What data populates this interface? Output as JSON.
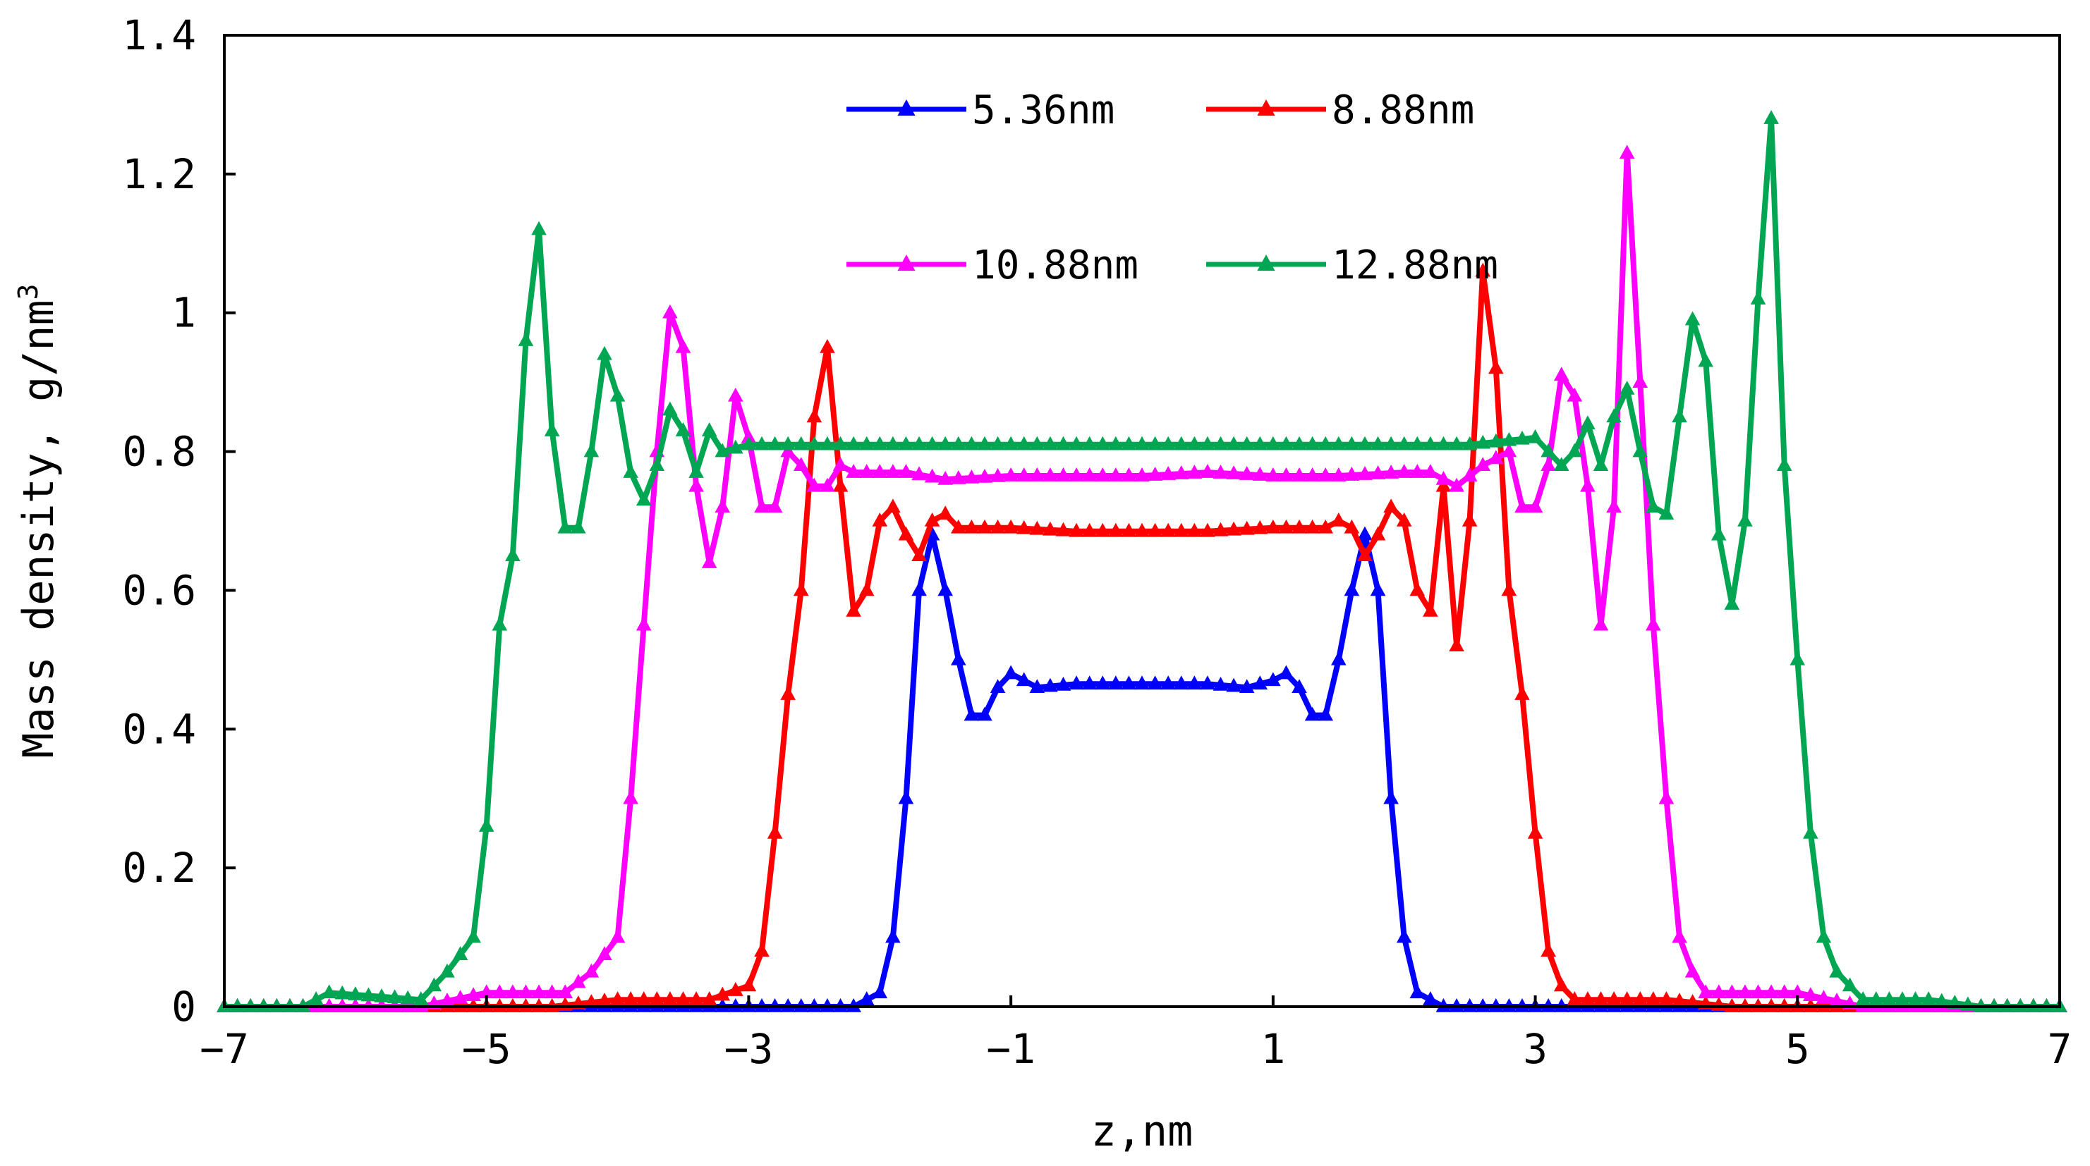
{
  "chart_data": {
    "type": "line",
    "xlabel": "z,nm",
    "ylabel_main": "Mass density, g/nm",
    "ylabel_sup": "3",
    "xlim": [
      -7,
      7
    ],
    "ylim": [
      0,
      1.4
    ],
    "x_ticks": [
      -7,
      -5,
      -3,
      -1,
      1,
      3,
      5,
      7
    ],
    "x_tick_labels": [
      "−7",
      "−5",
      "−3",
      "−1",
      "1",
      "3",
      "5",
      "7"
    ],
    "y_ticks": [
      0,
      0.2,
      0.4,
      0.6,
      0.8,
      1,
      1.2,
      1.4
    ],
    "y_tick_labels": [
      "0",
      "0.2",
      "0.4",
      "0.6",
      "0.8",
      "1",
      "1.2",
      "1.4"
    ],
    "grid": false,
    "legend_position": "top-center",
    "series": [
      {
        "name": "5.36nm",
        "color": "#0000ff",
        "marker": "triangle",
        "points": [
          [
            -7.0,
            0
          ],
          [
            -2.2,
            0
          ],
          [
            -2.0,
            0.02
          ],
          [
            -1.9,
            0.1
          ],
          [
            -1.8,
            0.3
          ],
          [
            -1.7,
            0.6
          ],
          [
            -1.6,
            0.68
          ],
          [
            -1.5,
            0.6
          ],
          [
            -1.4,
            0.5
          ],
          [
            -1.3,
            0.42
          ],
          [
            -1.2,
            0.42
          ],
          [
            -1.1,
            0.46
          ],
          [
            -1.0,
            0.48
          ],
          [
            -0.9,
            0.47
          ],
          [
            -0.8,
            0.46
          ],
          [
            -0.5,
            0.465
          ],
          [
            0.0,
            0.465
          ],
          [
            0.5,
            0.465
          ],
          [
            0.8,
            0.46
          ],
          [
            1.0,
            0.47
          ],
          [
            1.1,
            0.48
          ],
          [
            1.2,
            0.46
          ],
          [
            1.3,
            0.42
          ],
          [
            1.4,
            0.42
          ],
          [
            1.5,
            0.5
          ],
          [
            1.6,
            0.6
          ],
          [
            1.7,
            0.68
          ],
          [
            1.8,
            0.6
          ],
          [
            1.9,
            0.3
          ],
          [
            2.0,
            0.1
          ],
          [
            2.1,
            0.02
          ],
          [
            2.3,
            0
          ],
          [
            7.0,
            0
          ]
        ]
      },
      {
        "name": "8.88nm",
        "color": "#ff0000",
        "marker": "triangle",
        "points": [
          [
            -7.0,
            0
          ],
          [
            -4.5,
            0
          ],
          [
            -4.0,
            0.01
          ],
          [
            -3.3,
            0.01
          ],
          [
            -3.0,
            0.03
          ],
          [
            -2.9,
            0.08
          ],
          [
            -2.8,
            0.25
          ],
          [
            -2.7,
            0.45
          ],
          [
            -2.6,
            0.6
          ],
          [
            -2.5,
            0.85
          ],
          [
            -2.4,
            0.95
          ],
          [
            -2.3,
            0.75
          ],
          [
            -2.2,
            0.57
          ],
          [
            -2.1,
            0.6
          ],
          [
            -2.0,
            0.7
          ],
          [
            -1.9,
            0.72
          ],
          [
            -1.8,
            0.68
          ],
          [
            -1.7,
            0.65
          ],
          [
            -1.6,
            0.7
          ],
          [
            -1.5,
            0.71
          ],
          [
            -1.4,
            0.69
          ],
          [
            -1.2,
            0.69
          ],
          [
            -1.0,
            0.69
          ],
          [
            -0.5,
            0.685
          ],
          [
            0.0,
            0.685
          ],
          [
            0.5,
            0.685
          ],
          [
            1.0,
            0.69
          ],
          [
            1.2,
            0.69
          ],
          [
            1.4,
            0.69
          ],
          [
            1.5,
            0.7
          ],
          [
            1.6,
            0.69
          ],
          [
            1.7,
            0.65
          ],
          [
            1.8,
            0.68
          ],
          [
            1.9,
            0.72
          ],
          [
            2.0,
            0.7
          ],
          [
            2.1,
            0.6
          ],
          [
            2.2,
            0.57
          ],
          [
            2.3,
            0.75
          ],
          [
            2.4,
            0.52
          ],
          [
            2.5,
            0.7
          ],
          [
            2.6,
            1.06
          ],
          [
            2.7,
            0.92
          ],
          [
            2.8,
            0.6
          ],
          [
            2.9,
            0.45
          ],
          [
            3.0,
            0.25
          ],
          [
            3.1,
            0.08
          ],
          [
            3.2,
            0.03
          ],
          [
            3.3,
            0.01
          ],
          [
            4.0,
            0.01
          ],
          [
            4.5,
            0
          ],
          [
            7.0,
            0
          ]
        ]
      },
      {
        "name": "10.88nm",
        "color": "#ff00ff",
        "marker": "triangle",
        "points": [
          [
            -7.0,
            0
          ],
          [
            -5.5,
            0
          ],
          [
            -5.0,
            0.02
          ],
          [
            -4.4,
            0.02
          ],
          [
            -4.2,
            0.05
          ],
          [
            -4.0,
            0.1
          ],
          [
            -3.9,
            0.3
          ],
          [
            -3.8,
            0.55
          ],
          [
            -3.7,
            0.8
          ],
          [
            -3.6,
            1.0
          ],
          [
            -3.5,
            0.95
          ],
          [
            -3.4,
            0.75
          ],
          [
            -3.3,
            0.64
          ],
          [
            -3.2,
            0.72
          ],
          [
            -3.1,
            0.88
          ],
          [
            -3.0,
            0.82
          ],
          [
            -2.9,
            0.72
          ],
          [
            -2.8,
            0.72
          ],
          [
            -2.7,
            0.8
          ],
          [
            -2.6,
            0.78
          ],
          [
            -2.5,
            0.75
          ],
          [
            -2.4,
            0.75
          ],
          [
            -2.3,
            0.78
          ],
          [
            -2.2,
            0.77
          ],
          [
            -2.0,
            0.77
          ],
          [
            -1.8,
            0.77
          ],
          [
            -1.5,
            0.76
          ],
          [
            -1.0,
            0.765
          ],
          [
            0.0,
            0.765
          ],
          [
            0.5,
            0.77
          ],
          [
            1.0,
            0.765
          ],
          [
            1.5,
            0.765
          ],
          [
            2.0,
            0.77
          ],
          [
            2.2,
            0.77
          ],
          [
            2.4,
            0.75
          ],
          [
            2.6,
            0.78
          ],
          [
            2.8,
            0.8
          ],
          [
            2.9,
            0.72
          ],
          [
            3.0,
            0.72
          ],
          [
            3.1,
            0.78
          ],
          [
            3.2,
            0.91
          ],
          [
            3.3,
            0.88
          ],
          [
            3.4,
            0.75
          ],
          [
            3.5,
            0.55
          ],
          [
            3.6,
            0.72
          ],
          [
            3.7,
            1.23
          ],
          [
            3.8,
            0.9
          ],
          [
            3.9,
            0.55
          ],
          [
            4.0,
            0.3
          ],
          [
            4.1,
            0.1
          ],
          [
            4.2,
            0.05
          ],
          [
            4.3,
            0.02
          ],
          [
            5.0,
            0.02
          ],
          [
            5.5,
            0
          ],
          [
            7.0,
            0
          ]
        ]
      },
      {
        "name": "12.88nm",
        "color": "#00a651",
        "marker": "triangle",
        "points": [
          [
            -7.0,
            0
          ],
          [
            -6.4,
            0
          ],
          [
            -6.2,
            0.02
          ],
          [
            -5.5,
            0.01
          ],
          [
            -5.3,
            0.05
          ],
          [
            -5.1,
            0.1
          ],
          [
            -5.0,
            0.26
          ],
          [
            -4.9,
            0.55
          ],
          [
            -4.8,
            0.65
          ],
          [
            -4.7,
            0.96
          ],
          [
            -4.6,
            1.12
          ],
          [
            -4.5,
            0.83
          ],
          [
            -4.4,
            0.69
          ],
          [
            -4.3,
            0.69
          ],
          [
            -4.2,
            0.8
          ],
          [
            -4.1,
            0.94
          ],
          [
            -4.0,
            0.88
          ],
          [
            -3.9,
            0.77
          ],
          [
            -3.8,
            0.73
          ],
          [
            -3.7,
            0.78
          ],
          [
            -3.6,
            0.86
          ],
          [
            -3.5,
            0.83
          ],
          [
            -3.4,
            0.77
          ],
          [
            -3.3,
            0.83
          ],
          [
            -3.2,
            0.8
          ],
          [
            -3.0,
            0.81
          ],
          [
            -2.5,
            0.81
          ],
          [
            -2.0,
            0.81
          ],
          [
            -1.0,
            0.81
          ],
          [
            0.0,
            0.81
          ],
          [
            1.0,
            0.81
          ],
          [
            2.0,
            0.81
          ],
          [
            2.5,
            0.81
          ],
          [
            3.0,
            0.82
          ],
          [
            3.2,
            0.78
          ],
          [
            3.3,
            0.8
          ],
          [
            3.4,
            0.84
          ],
          [
            3.5,
            0.78
          ],
          [
            3.6,
            0.85
          ],
          [
            3.7,
            0.89
          ],
          [
            3.8,
            0.8
          ],
          [
            3.9,
            0.72
          ],
          [
            4.0,
            0.71
          ],
          [
            4.1,
            0.85
          ],
          [
            4.2,
            0.99
          ],
          [
            4.3,
            0.93
          ],
          [
            4.4,
            0.68
          ],
          [
            4.5,
            0.58
          ],
          [
            4.6,
            0.7
          ],
          [
            4.7,
            1.02
          ],
          [
            4.8,
            1.28
          ],
          [
            4.9,
            0.78
          ],
          [
            5.0,
            0.5
          ],
          [
            5.1,
            0.25
          ],
          [
            5.2,
            0.1
          ],
          [
            5.3,
            0.05
          ],
          [
            5.5,
            0.01
          ],
          [
            6.0,
            0.01
          ],
          [
            6.4,
            0
          ],
          [
            7.0,
            0
          ]
        ]
      }
    ]
  }
}
